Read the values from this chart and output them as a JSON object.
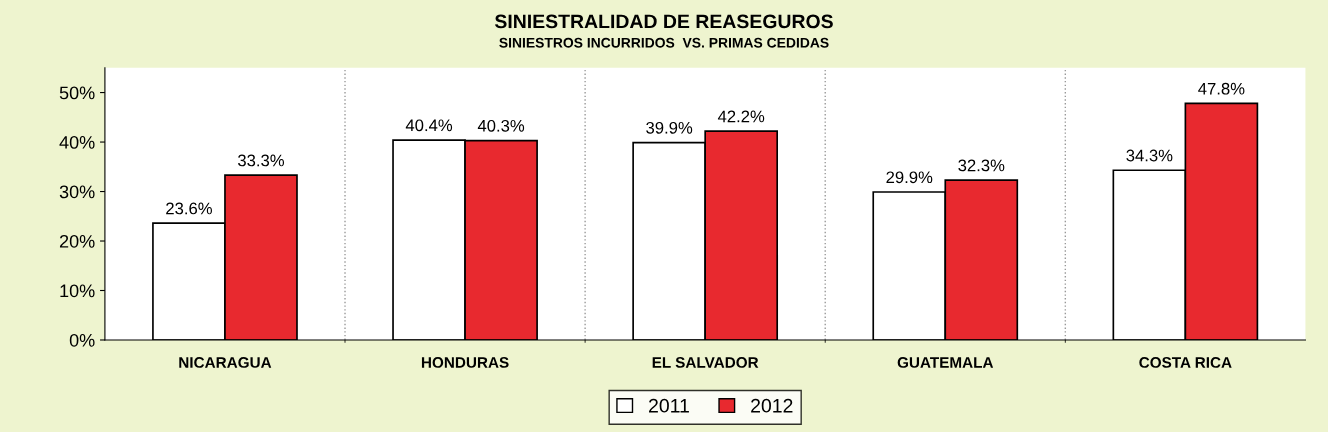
{
  "chart_data": {
    "type": "bar",
    "title": "SINIESTRALIDAD DE REASEGUROS",
    "subtitle": "SINIESTROS INCURRIDOS  VS. PRIMAS CEDIDAS",
    "categories": [
      "NICARAGUA",
      "HONDURAS",
      "EL SALVADOR",
      "GUATEMALA",
      "COSTA RICA"
    ],
    "series": [
      {
        "name": "2011",
        "color": "#ffffff",
        "values": [
          23.6,
          40.4,
          39.9,
          29.9,
          34.3
        ],
        "value_labels": [
          "23.6%",
          "40.4%",
          "39.9%",
          "29.9%",
          "34.3%"
        ]
      },
      {
        "name": "2012",
        "color": "#e8292f",
        "values": [
          33.3,
          40.3,
          42.2,
          32.3,
          47.8
        ],
        "value_labels": [
          "33.3%",
          "40.3%",
          "42.2%",
          "32.3%",
          "47.8%"
        ]
      }
    ],
    "ylim": [
      0,
      55
    ],
    "yticks": [
      {
        "value": 0,
        "label": "0%"
      },
      {
        "value": 10,
        "label": "10%"
      },
      {
        "value": 20,
        "label": "20%"
      },
      {
        "value": 30,
        "label": "30%"
      },
      {
        "value": 40,
        "label": "40%"
      },
      {
        "value": 50,
        "label": "50%"
      }
    ],
    "grid": "x",
    "legend": "bottom"
  }
}
